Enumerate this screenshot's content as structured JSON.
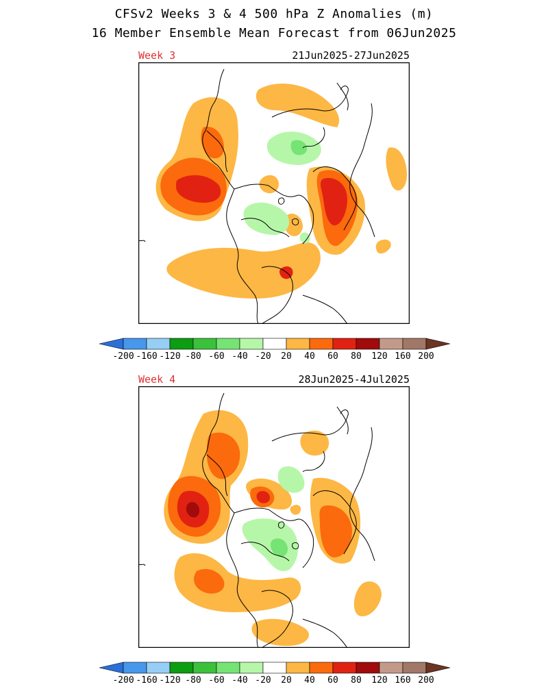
{
  "header": {
    "title_line1": "CFSv2 Weeks 3 & 4 500 hPa Z Anomalies (m)",
    "title_line2": "16 Member Ensemble Mean Forecast from 06Jun2025"
  },
  "panels": [
    {
      "label": "Week 3",
      "dates": "21Jun2025-27Jun2025"
    },
    {
      "label": "Week 4",
      "dates": "28Jun2025-4Jul2025"
    }
  ],
  "colorbar": {
    "tick_labels": [
      "-200",
      "-160",
      "-120",
      "-80",
      "-60",
      "-40",
      "-20",
      "20",
      "40",
      "60",
      "80",
      "120",
      "160",
      "200"
    ],
    "colors": [
      "#2b6fd8",
      "#4797ec",
      "#96cef5",
      "#0d9d12",
      "#3cc13c",
      "#76e474",
      "#b6f6a9",
      "#ffffff",
      "#fdb744",
      "#fb6a0c",
      "#e12212",
      "#a10b0b",
      "#c39a8a",
      "#a17767",
      "#6b3423"
    ]
  },
  "colors": {
    "week_label": "#e03030",
    "anomaly_20_40": "#fdb744",
    "anomaly_40_60": "#fb6a0c",
    "anomaly_60_80": "#e12212",
    "anomaly_80_120": "#a10b0b",
    "anomaly_neg_20_40": "#b6f6a9",
    "anomaly_neg_40_60": "#76e474"
  }
}
